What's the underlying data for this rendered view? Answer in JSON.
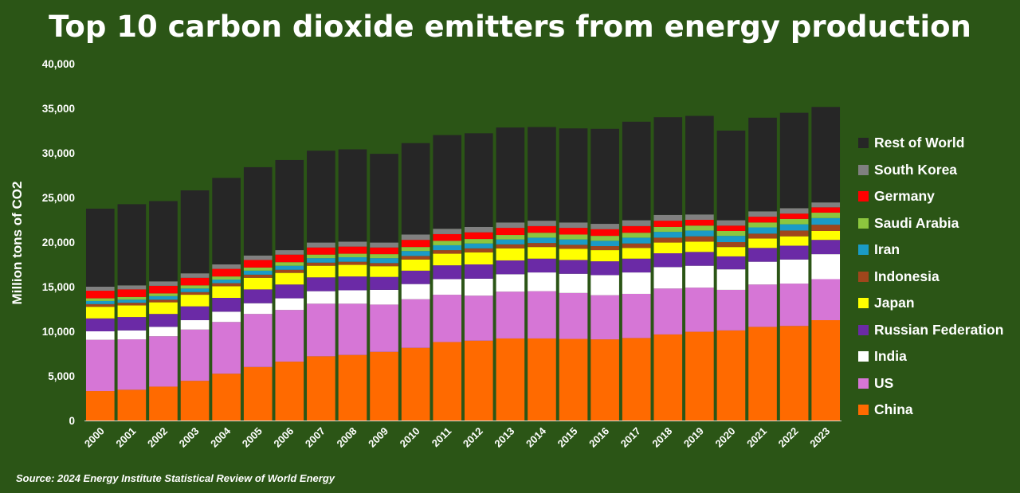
{
  "title": "Top 10 carbon dioxide emitters from energy production",
  "source": "Source: 2024 Energy Institute Statistical Review of World Energy",
  "chart_data": {
    "type": "bar",
    "stacked": true,
    "title": "Top 10 carbon dioxide emitters from energy production",
    "xlabel": "",
    "ylabel": "Million tons of CO2",
    "ylim": [
      0,
      40000
    ],
    "yticks": [
      0,
      5000,
      10000,
      15000,
      20000,
      25000,
      30000,
      35000,
      40000
    ],
    "ytick_labels": [
      "0",
      "5,000",
      "10,000",
      "15,000",
      "20,000",
      "25,000",
      "30,000",
      "35,000",
      "40,000"
    ],
    "grid": false,
    "legend_position": "right",
    "categories": [
      "2000",
      "2001",
      "2002",
      "2003",
      "2004",
      "2005",
      "2006",
      "2007",
      "2008",
      "2009",
      "2010",
      "2011",
      "2012",
      "2013",
      "2014",
      "2015",
      "2016",
      "2017",
      "2018",
      "2019",
      "2020",
      "2021",
      "2022",
      "2023"
    ],
    "series": [
      {
        "name": "China",
        "color": "#ff6a00",
        "values": [
          3300,
          3450,
          3800,
          4450,
          5250,
          6000,
          6600,
          7200,
          7350,
          7700,
          8150,
          8800,
          8950,
          9200,
          9200,
          9150,
          9100,
          9250,
          9650,
          9950,
          10100,
          10500,
          10600,
          11250
        ]
      },
      {
        "name": "US",
        "color": "#d676d6",
        "values": [
          5750,
          5650,
          5650,
          5750,
          5800,
          5950,
          5800,
          5900,
          5750,
          5300,
          5450,
          5300,
          5050,
          5250,
          5300,
          5150,
          4950,
          4950,
          5150,
          4950,
          4550,
          4750,
          4750,
          4600
        ]
      },
      {
        "name": "India",
        "color": "#ffffff",
        "values": [
          950,
          1000,
          1050,
          1050,
          1150,
          1200,
          1300,
          1400,
          1500,
          1650,
          1700,
          1750,
          1900,
          1950,
          2100,
          2150,
          2250,
          2400,
          2400,
          2450,
          2300,
          2550,
          2700,
          2800
        ]
      },
      {
        "name": "Russian Federation",
        "color": "#6b2aa6",
        "values": [
          1450,
          1500,
          1450,
          1550,
          1550,
          1550,
          1550,
          1550,
          1550,
          1450,
          1500,
          1550,
          1600,
          1550,
          1550,
          1550,
          1550,
          1550,
          1550,
          1550,
          1450,
          1550,
          1550,
          1600
        ]
      },
      {
        "name": "Japan",
        "color": "#ffff00",
        "values": [
          1300,
          1300,
          1300,
          1300,
          1300,
          1300,
          1300,
          1300,
          1300,
          1200,
          1250,
          1300,
          1350,
          1350,
          1300,
          1250,
          1250,
          1200,
          1200,
          1150,
          1050,
          1050,
          1050,
          1000
        ]
      },
      {
        "name": "Indonesia",
        "color": "#a0461c",
        "values": [
          300,
          300,
          300,
          300,
          350,
          350,
          350,
          350,
          350,
          350,
          400,
          400,
          450,
          450,
          450,
          450,
          450,
          500,
          550,
          600,
          550,
          550,
          650,
          700
        ]
      },
      {
        "name": "Iran",
        "color": "#1a9bc6",
        "values": [
          350,
          350,
          400,
          400,
          400,
          450,
          450,
          500,
          500,
          550,
          550,
          550,
          550,
          550,
          600,
          600,
          600,
          650,
          650,
          650,
          700,
          700,
          700,
          750
        ]
      },
      {
        "name": "Saudi Arabia",
        "color": "#8cc63e",
        "values": [
          300,
          300,
          300,
          350,
          350,
          350,
          400,
          400,
          400,
          450,
          450,
          500,
          500,
          500,
          550,
          550,
          550,
          550,
          550,
          550,
          550,
          550,
          600,
          600
        ]
      },
      {
        "name": "Germany",
        "color": "#ff0000",
        "values": [
          850,
          850,
          850,
          850,
          850,
          850,
          850,
          800,
          800,
          750,
          800,
          750,
          750,
          800,
          750,
          750,
          750,
          750,
          700,
          650,
          600,
          650,
          600,
          600
        ]
      },
      {
        "name": "South Korea",
        "color": "#808080",
        "values": [
          450,
          450,
          500,
          500,
          500,
          500,
          500,
          550,
          550,
          550,
          600,
          600,
          600,
          600,
          600,
          600,
          600,
          650,
          650,
          600,
          600,
          600,
          600,
          550
        ]
      },
      {
        "name": "Rest of World",
        "color": "#262626",
        "values": [
          8750,
          9100,
          9000,
          9300,
          9700,
          9900,
          10100,
          10300,
          10350,
          9950,
          10250,
          10500,
          10500,
          10650,
          10500,
          10550,
          10650,
          11050,
          10950,
          11050,
          10050,
          10500,
          10700,
          10700
        ]
      }
    ]
  }
}
